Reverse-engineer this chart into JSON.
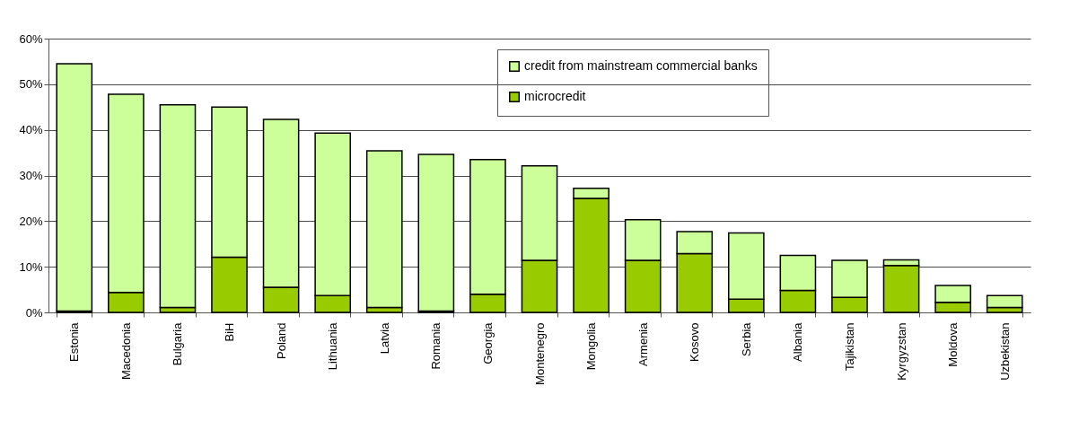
{
  "chart_data": {
    "type": "bar",
    "stacked": true,
    "categories": [
      "Estonia",
      "Macedonia",
      "Bulgaria",
      "BiH",
      "Poland",
      "Lithuania",
      "Latvia",
      "Romania",
      "Georgia",
      "Montenegro",
      "Mongolia",
      "Armenia",
      "Kosovo",
      "Serbia",
      "Albania",
      "Tajikistan",
      "Kyrgyzstan",
      "Moldova",
      "Uzbekistan"
    ],
    "series": [
      {
        "name": "microcredit",
        "color": "#99cc00",
        "values": [
          0.3,
          4.4,
          1.1,
          12.1,
          5.5,
          3.7,
          1.1,
          0.3,
          4.0,
          11.4,
          25.0,
          11.4,
          12.9,
          2.9,
          4.8,
          3.3,
          10.3,
          2.2,
          1.1
        ]
      },
      {
        "name": "credit from mainstream commercial banks",
        "color": "#ccff99",
        "values": [
          54.2,
          43.4,
          44.4,
          32.9,
          36.8,
          35.6,
          34.3,
          34.3,
          29.5,
          20.7,
          2.2,
          8.9,
          4.8,
          14.5,
          7.7,
          8.1,
          1.2,
          3.7,
          2.6
        ]
      }
    ],
    "ylim": [
      0,
      60
    ],
    "yticks": [
      {
        "value": 0,
        "label": "0%"
      },
      {
        "value": 10,
        "label": "10%"
      },
      {
        "value": 20,
        "label": "20%"
      },
      {
        "value": 30,
        "label": "30%"
      },
      {
        "value": 40,
        "label": "40%"
      },
      {
        "value": 50,
        "label": "50%"
      },
      {
        "value": 60,
        "label": "60%"
      }
    ],
    "grid": "y",
    "legend": "top"
  }
}
